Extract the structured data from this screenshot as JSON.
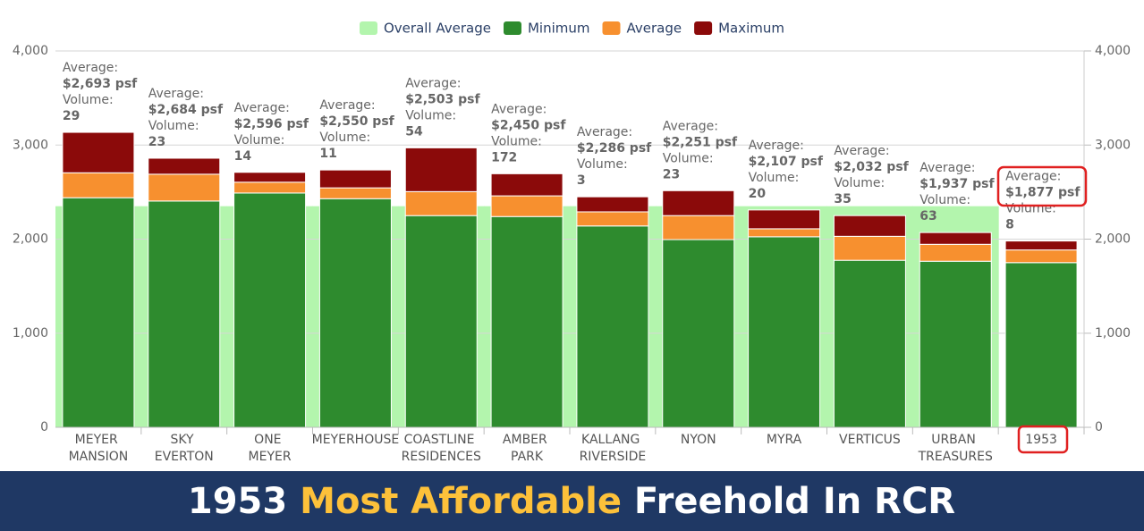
{
  "chart_data": {
    "type": "bar",
    "stacked": true,
    "categories": [
      "MEYER MANSION",
      "SKY EVERTON",
      "ONE MEYER",
      "MEYERHOUSE",
      "COASTLINE RESIDENCES",
      "AMBER PARK",
      "KALLANG RIVERSIDE",
      "NYON",
      "MYRA",
      "VERTICUS",
      "URBAN TREASURES",
      "1953"
    ],
    "series": [
      {
        "name": "Overall Average",
        "type": "area",
        "color": "#b3f5ad",
        "values": [
          2350,
          2350,
          2350,
          2350,
          2350,
          2350,
          2350,
          2350,
          2350,
          2350,
          2350,
          null
        ]
      },
      {
        "name": "Minimum",
        "color": "#2e8b2e",
        "values": [
          2440,
          2405,
          2490,
          2430,
          2250,
          2240,
          2140,
          1995,
          2025,
          1775,
          1765,
          1750
        ]
      },
      {
        "name": "Average",
        "color": "#f7902f",
        "values": [
          265,
          285,
          115,
          115,
          255,
          220,
          150,
          255,
          85,
          255,
          180,
          135
        ]
      },
      {
        "name": "Maximum",
        "color": "#8b0a0a",
        "values": [
          430,
          170,
          105,
          190,
          465,
          235,
          160,
          265,
          200,
          220,
          125,
          95
        ]
      }
    ],
    "annotation_average_label": "Average:",
    "annotation_volume_label": "Volume:",
    "annotations": [
      {
        "average": "$2,693 psf",
        "volume": 29
      },
      {
        "average": "$2,684 psf",
        "volume": 23
      },
      {
        "average": "$2,596 psf",
        "volume": 14
      },
      {
        "average": "$2,550 psf",
        "volume": 11
      },
      {
        "average": "$2,503 psf",
        "volume": 54
      },
      {
        "average": "$2,450 psf",
        "volume": 172
      },
      {
        "average": "$2,286 psf",
        "volume": 3
      },
      {
        "average": "$2,251 psf",
        "volume": 23
      },
      {
        "average": "$2,107 psf",
        "volume": 20
      },
      {
        "average": "$2,032 psf",
        "volume": 35
      },
      {
        "average": "$1,937 psf",
        "volume": 63
      },
      {
        "average": "$1,877 psf",
        "volume": 8
      }
    ],
    "ylim": [
      0,
      4000
    ],
    "yticks": [
      0,
      {
        "value": 1000,
        "label": "1,000"
      },
      {
        "value": 2000,
        "label": "2,000"
      },
      {
        "value": 3000,
        "label": "3,000"
      },
      {
        "value": 4000,
        "label": "4,000"
      }
    ],
    "y2lim": [
      0,
      4000
    ],
    "y2ticks": [
      0,
      {
        "value": 1000,
        "label": "1,000"
      },
      {
        "value": 2000,
        "label": "2,000"
      },
      {
        "value": 3000,
        "label": "3,000"
      },
      {
        "value": 4000,
        "label": "4,000"
      }
    ],
    "grid": true,
    "legend": "top"
  },
  "banner": {
    "parts": [
      "1953",
      "Most Affordable",
      "Freehold In RCR"
    ]
  }
}
